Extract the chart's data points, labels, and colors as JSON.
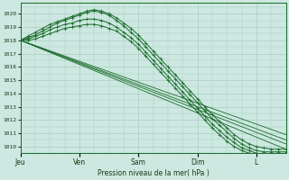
{
  "background_color": "#cce8e0",
  "grid_color": "#aaccC4",
  "line_color": "#1a6b2a",
  "marker_color": "#1a6b2a",
  "ylabel_ticks": [
    1010,
    1011,
    1012,
    1013,
    1014,
    1015,
    1016,
    1017,
    1018,
    1019,
    1020
  ],
  "ylim": [
    1009.5,
    1020.8
  ],
  "xlabel": "Pression niveau de la mer( hPa )",
  "x_day_labels": [
    "Jeu",
    "Ven",
    "Sam",
    "Dim",
    "L"
  ],
  "x_day_positions": [
    0,
    24,
    48,
    72,
    96
  ],
  "total_hours": 108,
  "curved_series": [
    {
      "x": [
        0,
        3,
        6,
        9,
        12,
        15,
        18,
        21,
        24,
        27,
        30,
        33,
        36,
        39,
        42,
        45,
        48,
        51,
        54,
        57,
        60,
        63,
        66,
        69,
        72,
        75,
        78,
        81,
        84,
        87,
        90,
        93,
        96,
        99,
        102,
        105,
        108
      ],
      "y": [
        1018.0,
        1018.3,
        1018.6,
        1018.9,
        1019.2,
        1019.4,
        1019.6,
        1019.8,
        1020.0,
        1020.2,
        1020.3,
        1020.2,
        1020.0,
        1019.7,
        1019.3,
        1018.9,
        1018.4,
        1017.8,
        1017.2,
        1016.6,
        1016.0,
        1015.4,
        1014.8,
        1014.2,
        1013.6,
        1013.0,
        1012.4,
        1011.9,
        1011.4,
        1010.9,
        1010.5,
        1010.2,
        1010.0,
        1009.9,
        1009.8,
        1009.8,
        1009.8
      ]
    },
    {
      "x": [
        0,
        3,
        6,
        9,
        12,
        15,
        18,
        21,
        24,
        27,
        30,
        33,
        36,
        39,
        42,
        45,
        48,
        51,
        54,
        57,
        60,
        63,
        66,
        69,
        72,
        75,
        78,
        81,
        84,
        87,
        90,
        93,
        96,
        99,
        102,
        105,
        108
      ],
      "y": [
        1018.0,
        1018.2,
        1018.4,
        1018.7,
        1019.0,
        1019.3,
        1019.5,
        1019.7,
        1019.9,
        1020.1,
        1020.2,
        1020.1,
        1019.9,
        1019.5,
        1019.1,
        1018.6,
        1018.1,
        1017.5,
        1016.9,
        1016.3,
        1015.7,
        1015.1,
        1014.5,
        1013.9,
        1013.3,
        1012.7,
        1012.1,
        1011.6,
        1011.1,
        1010.6,
        1010.2,
        1009.9,
        1009.7,
        1009.6,
        1009.6,
        1009.6,
        1009.6
      ]
    },
    {
      "x": [
        0,
        3,
        6,
        9,
        12,
        15,
        18,
        21,
        24,
        27,
        30,
        33,
        36,
        39,
        42,
        45,
        48,
        51,
        54,
        57,
        60,
        63,
        66,
        69,
        72,
        75,
        78,
        81,
        84,
        87,
        90,
        93,
        96,
        99,
        102,
        105,
        108
      ],
      "y": [
        1018.0,
        1018.1,
        1018.3,
        1018.5,
        1018.8,
        1019.0,
        1019.2,
        1019.3,
        1019.5,
        1019.6,
        1019.6,
        1019.5,
        1019.3,
        1019.0,
        1018.6,
        1018.2,
        1017.7,
        1017.1,
        1016.5,
        1015.9,
        1015.3,
        1014.7,
        1014.1,
        1013.5,
        1012.9,
        1012.3,
        1011.7,
        1011.2,
        1010.7,
        1010.3,
        1009.9,
        1009.7,
        1009.5,
        1009.4,
        1009.4,
        1009.4,
        1009.4
      ]
    },
    {
      "x": [
        0,
        3,
        6,
        9,
        12,
        15,
        18,
        21,
        24,
        27,
        30,
        33,
        36,
        39,
        42,
        45,
        48,
        51,
        54,
        57,
        60,
        63,
        66,
        69,
        72,
        75,
        78,
        81,
        84,
        87,
        90,
        93,
        96,
        99,
        102,
        105,
        108
      ],
      "y": [
        1018.0,
        1018.0,
        1018.1,
        1018.3,
        1018.5,
        1018.7,
        1018.9,
        1019.0,
        1019.1,
        1019.2,
        1019.2,
        1019.1,
        1018.9,
        1018.7,
        1018.3,
        1017.9,
        1017.4,
        1016.8,
        1016.2,
        1015.6,
        1015.0,
        1014.4,
        1013.8,
        1013.2,
        1012.6,
        1012.0,
        1011.4,
        1010.9,
        1010.4,
        1010.0,
        1009.7,
        1009.5,
        1009.4,
        1009.3,
        1009.3,
        1009.3,
        1009.3
      ]
    }
  ],
  "straight_series": [
    {
      "x": [
        0,
        108
      ],
      "y": [
        1018.0,
        1009.8
      ]
    },
    {
      "x": [
        0,
        108
      ],
      "y": [
        1018.0,
        1010.2
      ]
    },
    {
      "x": [
        0,
        108
      ],
      "y": [
        1018.0,
        1010.5
      ]
    },
    {
      "x": [
        0,
        108
      ],
      "y": [
        1018.0,
        1010.9
      ]
    }
  ]
}
